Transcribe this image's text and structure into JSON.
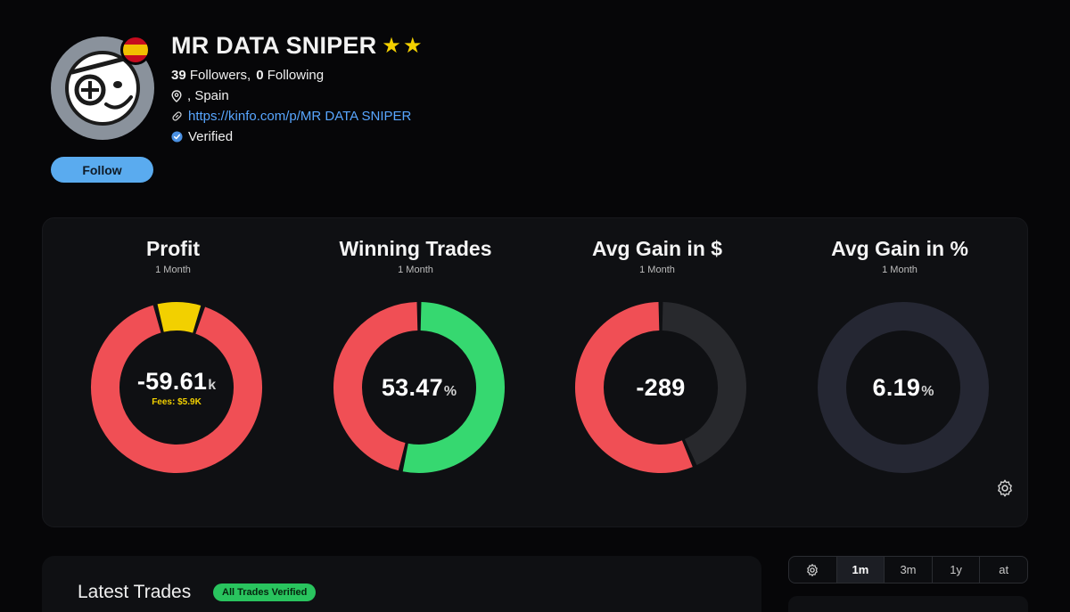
{
  "profile": {
    "name": "MR DATA SNIPER",
    "followers_count": "39",
    "followers_label": "Followers,",
    "following_count": "0",
    "following_label": "Following",
    "location": ", Spain",
    "link": "https://kinfo.com/p/MR DATA SNIPER",
    "verified": "Verified",
    "follow_button": "Follow",
    "stars": 2
  },
  "stats": [
    {
      "title": "Profit",
      "period": "1 Month",
      "value": "-59.61",
      "unit": "k",
      "fees": "Fees: $5.9K",
      "segments": [
        {
          "name": "loss",
          "fraction": 0.91,
          "color": "#f04f55"
        },
        {
          "name": "fees",
          "fraction": 0.09,
          "color": "#f2d000"
        }
      ]
    },
    {
      "title": "Winning Trades",
      "period": "1 Month",
      "value": "53.47",
      "unit": "%",
      "segments": [
        {
          "name": "winning",
          "fraction": 0.5347,
          "color": "#36d870"
        },
        {
          "name": "losing",
          "fraction": 0.4653,
          "color": "#f04f55"
        }
      ]
    },
    {
      "title": "Avg Gain in $",
      "period": "1 Month",
      "value": "-289",
      "unit": "",
      "segments": [
        {
          "name": "rest",
          "fraction": 0.435,
          "color": "#28292d"
        },
        {
          "name": "loss",
          "fraction": 0.565,
          "color": "#f04f55"
        }
      ]
    },
    {
      "title": "Avg Gain in %",
      "period": "1 Month",
      "value": "6.19",
      "unit": "%",
      "segments": [
        {
          "name": "track",
          "fraction": 1.0,
          "color": "#252733"
        }
      ]
    }
  ],
  "latest_trades": {
    "title": "Latest Trades",
    "badge": "All Trades Verified"
  },
  "range_tabs": {
    "options": [
      "1m",
      "3m",
      "1y",
      "at"
    ],
    "selected": "1m"
  },
  "colors": {
    "accent": "#5aabef",
    "link": "#58a6ff",
    "loss": "#f04f55",
    "gain": "#36d870",
    "fees": "#f2d000"
  }
}
